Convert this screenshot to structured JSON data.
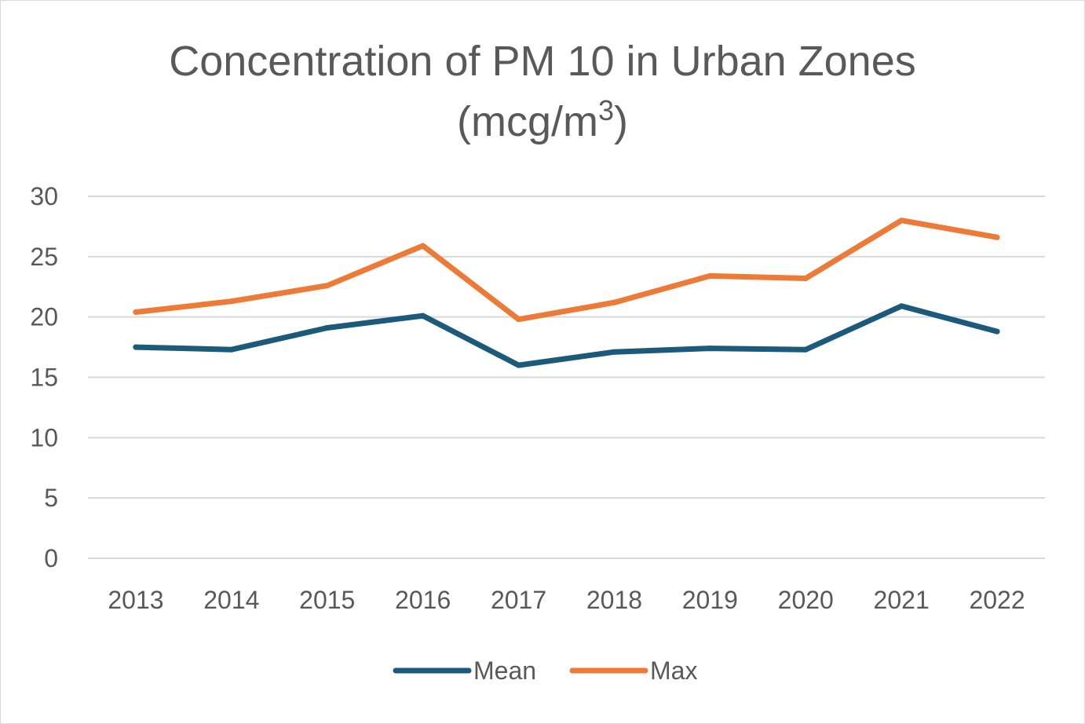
{
  "chart_data": {
    "type": "line",
    "title_line1": "Concentration of PM 10 in Urban Zones",
    "title_line2_base": "(mcg/m",
    "title_line2_sup": "3",
    "title_line2_end": ")",
    "xlabel": "",
    "ylabel": "",
    "categories": [
      "2013",
      "2014",
      "2015",
      "2016",
      "2017",
      "2018",
      "2019",
      "2020",
      "2021",
      "2022"
    ],
    "ylim": [
      0,
      30
    ],
    "yticks": [
      "0",
      "5",
      "10",
      "15",
      "20",
      "25",
      "30"
    ],
    "grid": true,
    "legend_position": "bottom",
    "series": [
      {
        "name": "Mean",
        "color": "#1b5a7a",
        "values": [
          17.5,
          17.3,
          19.1,
          20.1,
          16.0,
          17.1,
          17.4,
          17.3,
          20.9,
          18.8
        ]
      },
      {
        "name": "Max",
        "color": "#ed7a37",
        "values": [
          20.4,
          21.3,
          22.6,
          25.9,
          19.8,
          21.2,
          23.4,
          23.2,
          28.0,
          26.6
        ]
      }
    ]
  }
}
